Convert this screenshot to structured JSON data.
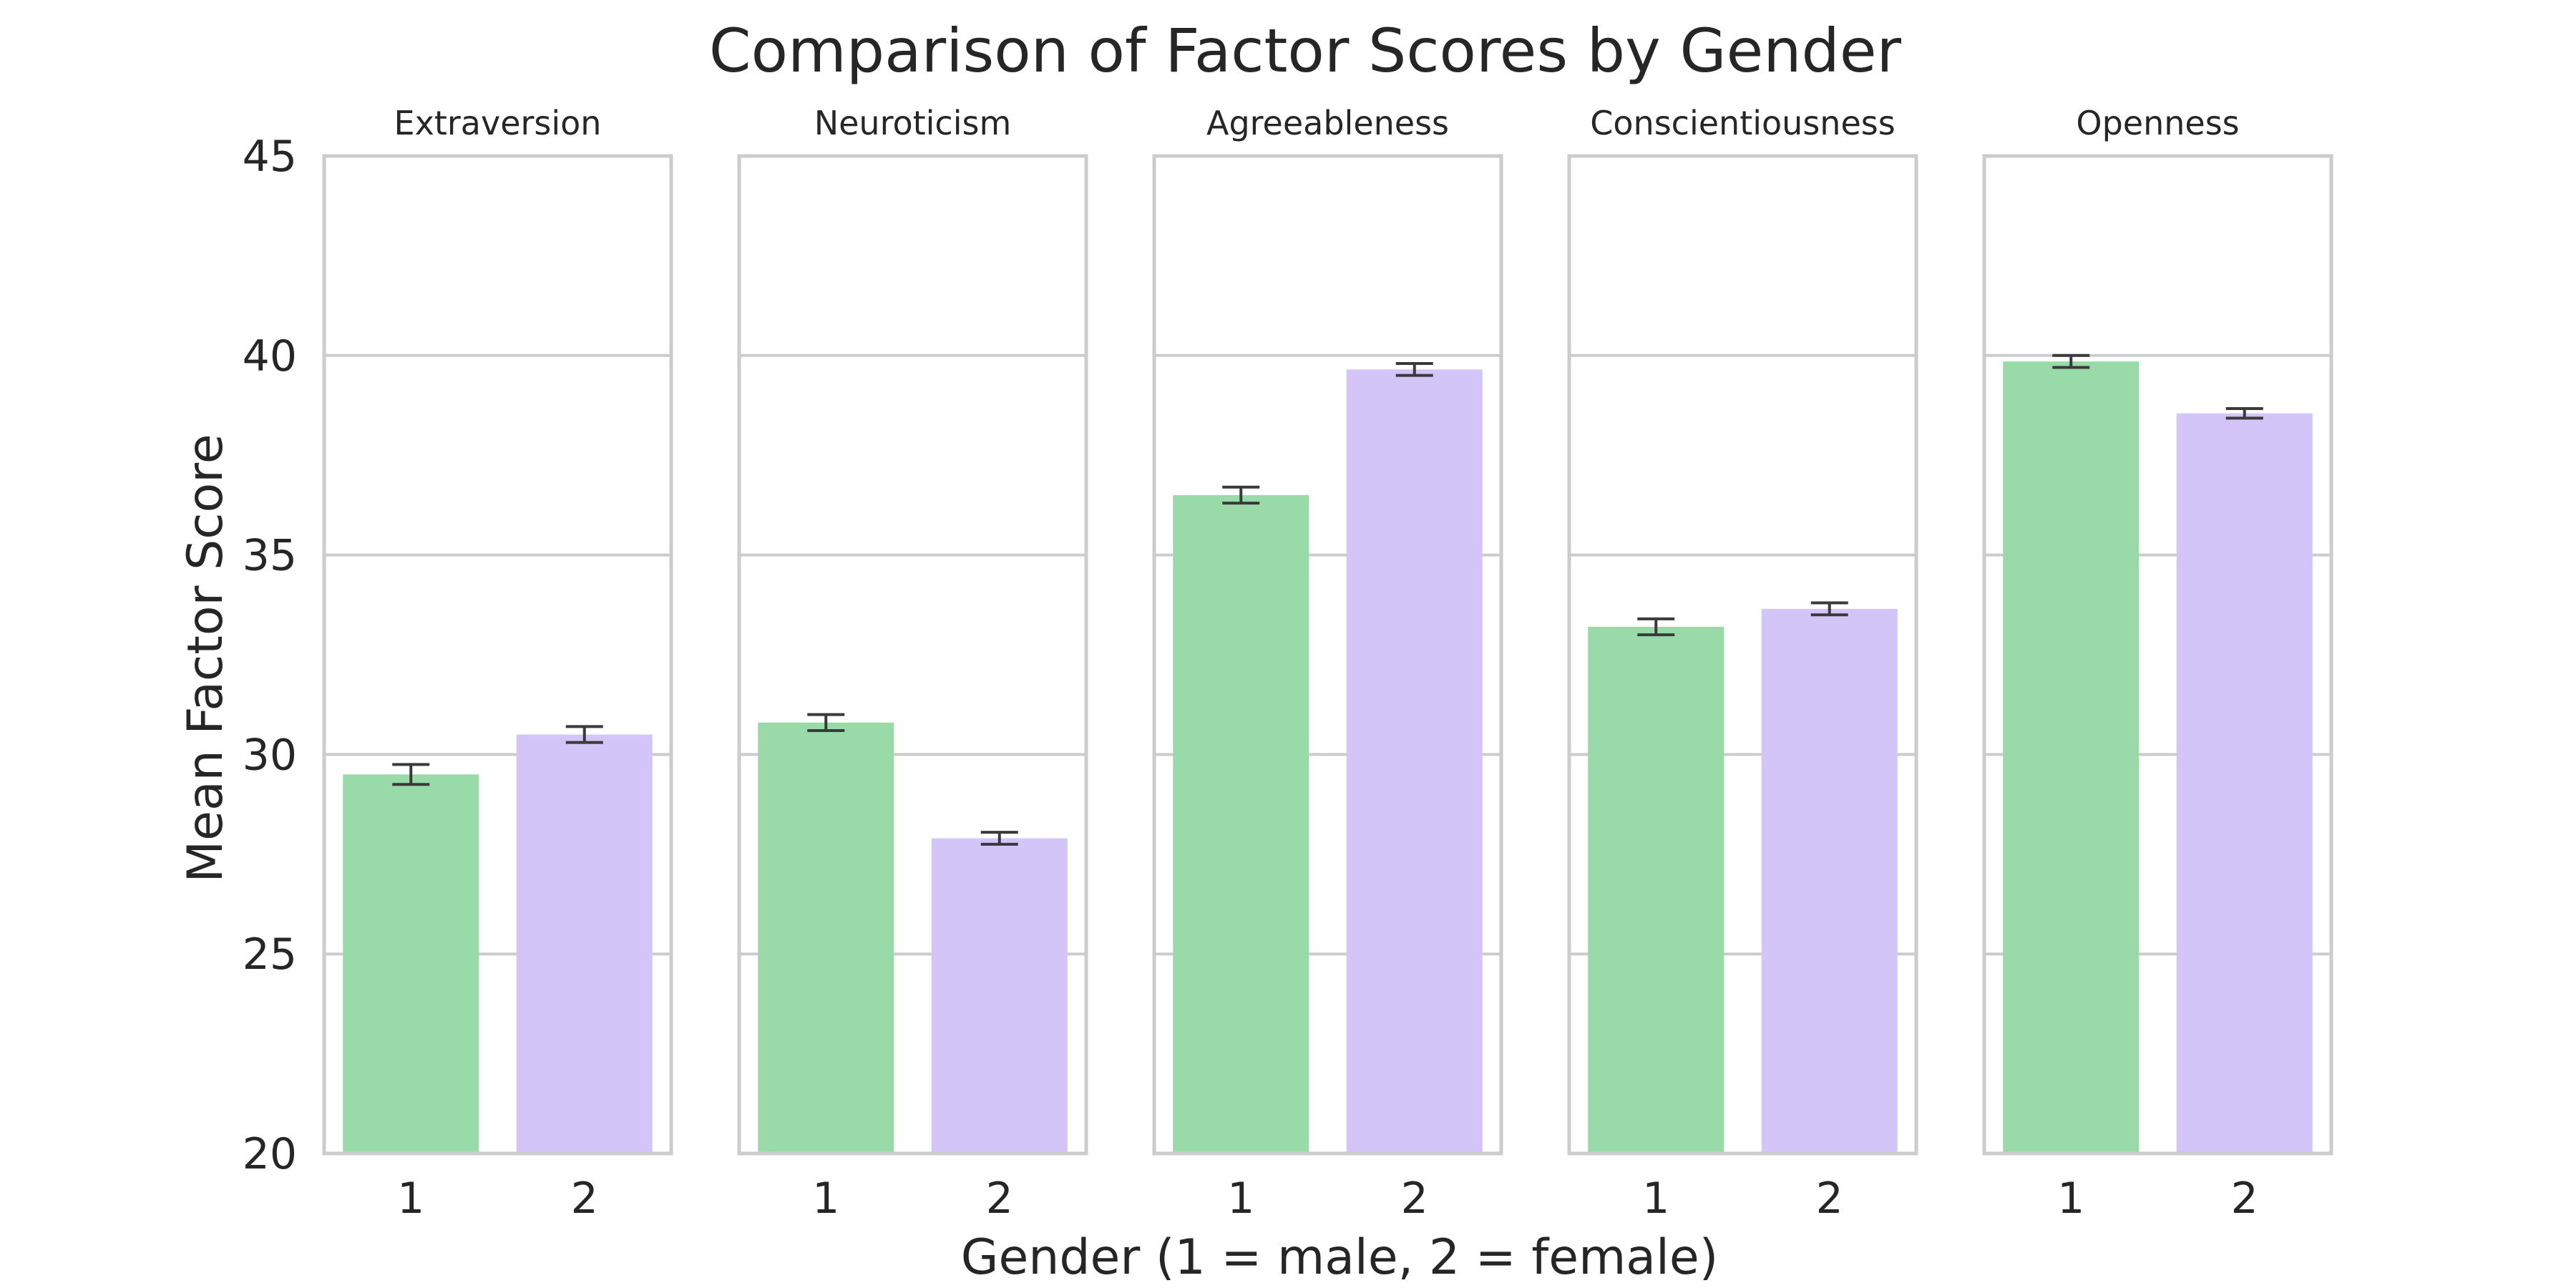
{
  "chart_data": {
    "type": "bar",
    "title": "Comparison of Factor Scores by Gender",
    "xlabel": "Gender (1 = male, 2 = female)",
    "ylabel": "Mean Factor Score",
    "ylim": [
      20,
      45
    ],
    "yticks": [
      "20",
      "25",
      "30",
      "35",
      "40",
      "45"
    ],
    "categories": [
      "1",
      "2"
    ],
    "grid": true,
    "series_colors": [
      "#98dba8",
      "#d3c5f7"
    ],
    "panels": [
      {
        "title": "Extraversion",
        "values": [
          29.5,
          30.5
        ],
        "errors": [
          0.25,
          0.2
        ]
      },
      {
        "title": "Neuroticism",
        "values": [
          30.8,
          27.9
        ],
        "errors": [
          0.2,
          0.15
        ]
      },
      {
        "title": "Agreeableness",
        "values": [
          36.5,
          39.65
        ],
        "errors": [
          0.2,
          0.15
        ]
      },
      {
        "title": "Conscientiousness",
        "values": [
          33.2,
          33.65
        ],
        "errors": [
          0.2,
          0.15
        ]
      },
      {
        "title": "Openness",
        "values": [
          39.85,
          38.55
        ],
        "errors": [
          0.15,
          0.12
        ]
      }
    ]
  }
}
